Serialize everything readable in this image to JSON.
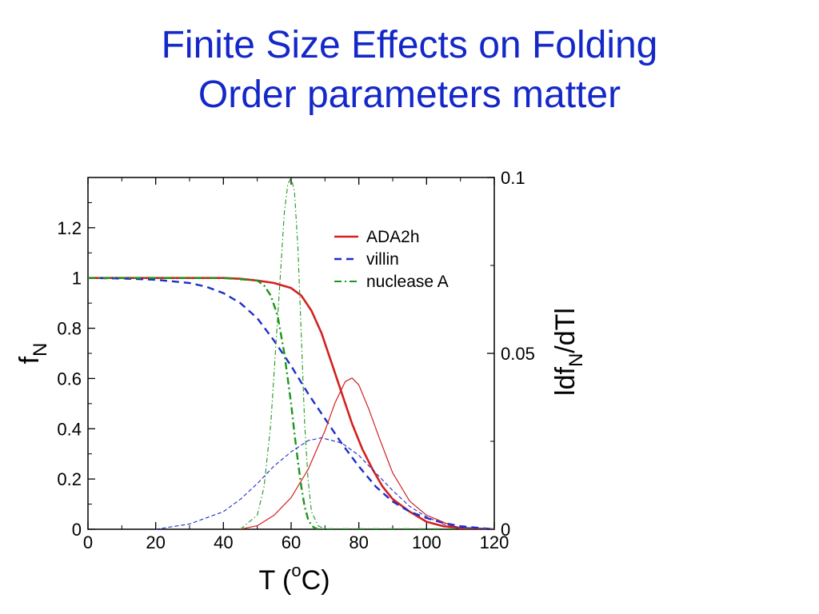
{
  "slide": {
    "title_line1": "Finite Size Effects on Folding",
    "title_line2": "Order parameters matter"
  },
  "chart_data": {
    "type": "line",
    "x_axis": {
      "label_main": "T (",
      "label_sup": "o",
      "label_end": "C)",
      "min": 0,
      "max": 120,
      "ticks": [
        "0",
        "20",
        "40",
        "60",
        "80",
        "100",
        "120"
      ]
    },
    "y_left": {
      "label_main": "f",
      "label_sub": "N",
      "min": 0,
      "max": 1.4,
      "ticks": [
        "0",
        "0.2",
        "0.4",
        "0.6",
        "0.8",
        "1",
        "1.2"
      ]
    },
    "y_right": {
      "label_a": "ldf",
      "label_sub": "N",
      "label_b": "/dTl",
      "min": 0,
      "max": 0.1,
      "ticks": [
        "0",
        "0.05",
        "0.1"
      ]
    },
    "grid": false,
    "legend_position": "top-right",
    "colors": {
      "ADA2h": "#d42020",
      "villin": "#1c2fc8",
      "nuclease": "#1a961a"
    },
    "series": [
      {
        "key": "ADA2h",
        "name": "ADA2h",
        "style": "solid",
        "axis": "left",
        "x": [
          0,
          10,
          20,
          30,
          40,
          45,
          50,
          55,
          60,
          63,
          66,
          69,
          72,
          75,
          78,
          81,
          84,
          87,
          90,
          95,
          100,
          105,
          110,
          120
        ],
        "y": [
          1.0,
          1.0,
          1.0,
          1.0,
          1.0,
          0.997,
          0.99,
          0.98,
          0.96,
          0.93,
          0.87,
          0.78,
          0.66,
          0.54,
          0.42,
          0.32,
          0.24,
          0.17,
          0.12,
          0.07,
          0.03,
          0.012,
          0.005,
          0.0
        ]
      },
      {
        "key": "villin",
        "name": "villin",
        "style": "dashed",
        "axis": "left",
        "x": [
          0,
          10,
          20,
          30,
          35,
          40,
          45,
          50,
          55,
          60,
          65,
          70,
          75,
          80,
          85,
          90,
          95,
          100,
          105,
          110,
          120
        ],
        "y": [
          1.0,
          0.998,
          0.993,
          0.98,
          0.965,
          0.94,
          0.9,
          0.84,
          0.75,
          0.65,
          0.54,
          0.44,
          0.34,
          0.25,
          0.17,
          0.11,
          0.07,
          0.045,
          0.025,
          0.012,
          0.0
        ]
      },
      {
        "key": "nuclease",
        "name": "nuclease A",
        "style": "dashdot",
        "axis": "left",
        "x": [
          0,
          20,
          40,
          50,
          52,
          54,
          56,
          58,
          60,
          61,
          62,
          63,
          64,
          65,
          66,
          67,
          68,
          70,
          120
        ],
        "y": [
          1.0,
          1.0,
          1.0,
          0.99,
          0.97,
          0.93,
          0.85,
          0.7,
          0.5,
          0.38,
          0.27,
          0.17,
          0.09,
          0.04,
          0.015,
          0.005,
          0.0,
          0.0,
          0.0
        ]
      },
      {
        "key": "ADA2h_deriv",
        "name": "",
        "style": "thin-solid",
        "axis": "right",
        "x": [
          45,
          50,
          55,
          60,
          65,
          70,
          73,
          76,
          78,
          80,
          83,
          86,
          90,
          95,
          100,
          105,
          110,
          120
        ],
        "y": [
          0.0,
          0.001,
          0.004,
          0.009,
          0.017,
          0.028,
          0.036,
          0.042,
          0.043,
          0.041,
          0.034,
          0.026,
          0.016,
          0.008,
          0.004,
          0.002,
          0.0,
          0.0
        ]
      },
      {
        "key": "villin_deriv",
        "name": "",
        "style": "thin-dashed",
        "axis": "right",
        "x": [
          20,
          30,
          40,
          45,
          50,
          55,
          60,
          65,
          69,
          75,
          80,
          85,
          90,
          95,
          100,
          105,
          110,
          120
        ],
        "y": [
          0.0,
          0.0015,
          0.005,
          0.0085,
          0.013,
          0.018,
          0.022,
          0.0252,
          0.026,
          0.0245,
          0.021,
          0.016,
          0.011,
          0.0065,
          0.0035,
          0.0015,
          0.0005,
          0.0
        ]
      },
      {
        "key": "nuclease_deriv",
        "name": "",
        "style": "thin-dashdot",
        "axis": "right",
        "x": [
          45,
          50,
          52,
          54,
          56,
          58,
          59,
          60,
          61,
          62,
          63,
          64,
          65,
          66,
          68,
          70
        ],
        "y": [
          0.0,
          0.004,
          0.012,
          0.03,
          0.06,
          0.09,
          0.098,
          0.1,
          0.096,
          0.08,
          0.055,
          0.03,
          0.014,
          0.005,
          0.001,
          0.0
        ]
      }
    ]
  }
}
